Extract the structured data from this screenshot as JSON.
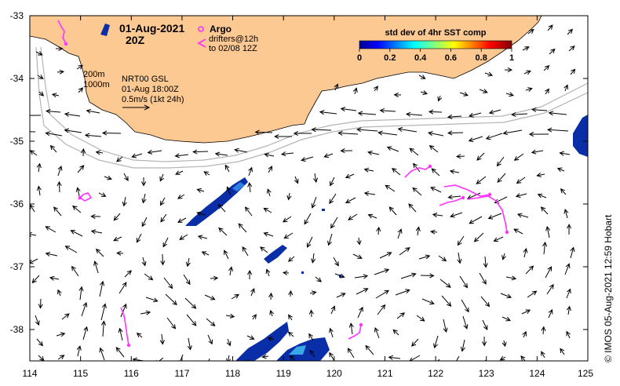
{
  "map": {
    "date_label": "01-Aug-2021",
    "hour_label": "20Z",
    "argo_label": "Argo",
    "drifters_line1": "drifters@12h",
    "drifters_line2": "to 02/08 12Z",
    "isobath_200": "200m",
    "isobath_1000": "1000m",
    "product_line1": "NRT00 GSL",
    "product_line2": "01-Aug 18:00Z",
    "product_line3": "0.5m/s (1kt 24h)",
    "credit": "© IMOS 05-Aug-2021 12:59 Hobart",
    "colors": {
      "land": "#fcc993",
      "argo": "#ff33ff",
      "drifter": "#ff33ff",
      "isobath": "#b4b4b4",
      "arrow": "#000000"
    }
  },
  "colorbar": {
    "title": "std dev of 4hr SST comp",
    "ticks": [
      "0",
      "0.2",
      "0.4",
      "0.6",
      "0.8",
      "1"
    ],
    "min": 0,
    "max": 1
  },
  "axes": {
    "x_ticks": [
      "114",
      "115",
      "116",
      "117",
      "118",
      "119",
      "120",
      "121",
      "122",
      "123",
      "124",
      "125"
    ],
    "y_ticks": [
      "-33",
      "-34",
      "-35",
      "-36",
      "-37",
      "-38"
    ],
    "lon_range": [
      114,
      125
    ],
    "lat_range": [
      -38.5,
      -33
    ]
  }
}
